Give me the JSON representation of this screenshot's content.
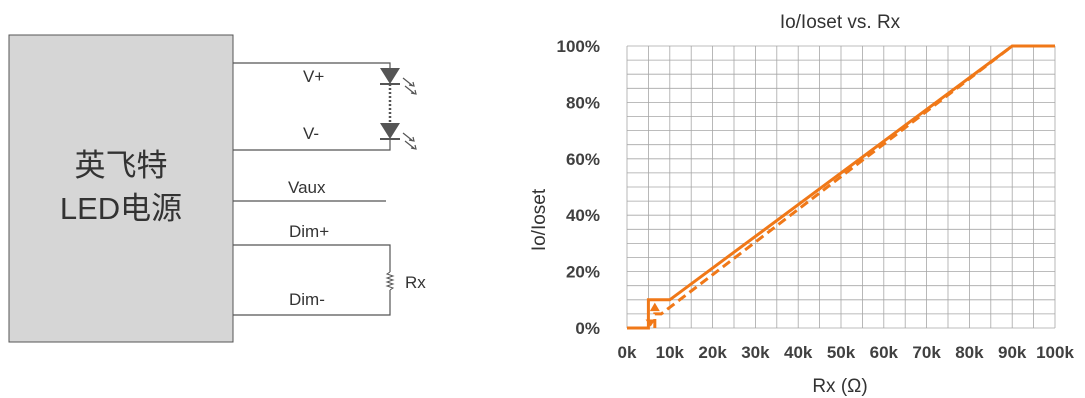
{
  "diagram": {
    "box_line1": "英飞特",
    "box_line2": "LED电源",
    "labels": {
      "vplus": "V+",
      "vminus": "V-",
      "vaux": "Vaux",
      "dimplus": "Dim+",
      "dimminus": "Dim-",
      "rx": "Rx"
    },
    "colors": {
      "box_fill": "#d6d6d6",
      "line": "#555555",
      "led": "#555555"
    }
  },
  "chart_data": {
    "type": "line",
    "title": "Io/Ioset vs. Rx",
    "xlabel": "Rx (Ω)",
    "ylabel": "Io/Ioset",
    "xlim": [
      0,
      100
    ],
    "ylim": [
      0,
      100
    ],
    "x_tick_labels": [
      "0k",
      "10k",
      "20k",
      "30k",
      "40k",
      "50k",
      "60k",
      "70k",
      "80k",
      "90k",
      "100k"
    ],
    "y_tick_labels": [
      "0%",
      "20%",
      "40%",
      "60%",
      "80%",
      "100%"
    ],
    "y_tick_values": [
      0,
      20,
      40,
      60,
      80,
      100
    ],
    "grid": true,
    "color": "#f07818",
    "series": [
      {
        "style": "solid",
        "x": [
          0,
          5,
          5,
          10,
          90,
          100
        ],
        "y": [
          0,
          0,
          10,
          10,
          100,
          100
        ]
      },
      {
        "style": "dashed",
        "x": [
          6.5,
          6.5,
          8,
          90
        ],
        "y": [
          0,
          5,
          5,
          100
        ]
      }
    ]
  }
}
